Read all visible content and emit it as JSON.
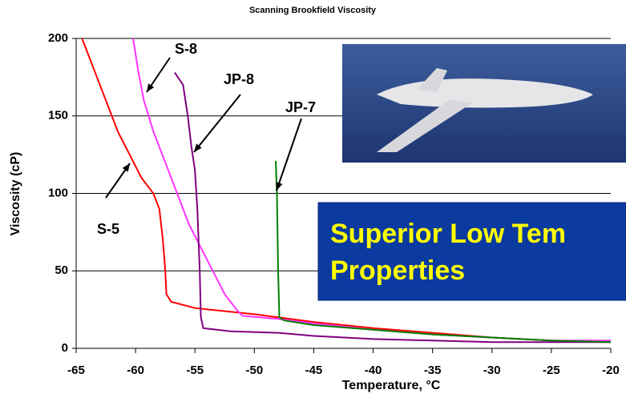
{
  "chart_data": {
    "type": "line",
    "title": "Scanning Brookfield Viscosity",
    "x_label": "Temperature, °C",
    "y_label": "Viscosity (cP)",
    "xlim": [
      -65,
      -20
    ],
    "ylim": [
      0,
      200
    ],
    "xticks": [
      -65,
      -60,
      -55,
      -50,
      -45,
      -40,
      -35,
      -30,
      -25,
      -20
    ],
    "yticks": [
      0,
      50,
      100,
      150,
      200
    ],
    "grid": true,
    "series": [
      {
        "name": "S-5",
        "color": "#ff0000",
        "x": [
          -64.5,
          -63.5,
          -62.5,
          -61.5,
          -60.5,
          -59.5,
          -58.5,
          -58,
          -57.7,
          -57.5,
          -57.4,
          -57,
          -55,
          -50,
          -45,
          -40,
          -35,
          -30,
          -25,
          -20
        ],
        "values": [
          200,
          180,
          160,
          140,
          125,
          110,
          100,
          90,
          70,
          50,
          35,
          30,
          26,
          22,
          17,
          13,
          10,
          7,
          5,
          4
        ]
      },
      {
        "name": "S-8",
        "color": "#ff33ff",
        "x": [
          -60.2,
          -59.8,
          -59.3,
          -58.5,
          -57.5,
          -56.5,
          -55.5,
          -54.5,
          -53.5,
          -52.5,
          -51.5,
          -51,
          -48,
          -45,
          -40,
          -35,
          -30,
          -25,
          -20
        ],
        "values": [
          200,
          180,
          160,
          140,
          120,
          100,
          80,
          65,
          50,
          35,
          25,
          21,
          19,
          16,
          12,
          9,
          7,
          5,
          5
        ]
      },
      {
        "name": "JP-8",
        "color": "#800080",
        "x": [
          -56.7,
          -56,
          -55.6,
          -55.3,
          -55,
          -54.8,
          -54.6,
          -54.5,
          -54.3,
          -52,
          -48,
          -45,
          -40,
          -35,
          -30,
          -25,
          -20
        ],
        "values": [
          178,
          170,
          150,
          130,
          115,
          90,
          50,
          20,
          13,
          11,
          10,
          8,
          6,
          5,
          4,
          4,
          4
        ]
      },
      {
        "name": "JP-7",
        "color": "#008000",
        "x": [
          -48.2,
          -48.1,
          -48,
          -47.9,
          -47.5,
          -45,
          -40,
          -35,
          -30,
          -25,
          -20
        ],
        "values": [
          121,
          100,
          50,
          20,
          18,
          15,
          12,
          9,
          7,
          5,
          4
        ]
      }
    ],
    "callout": [
      "Superior Low Tem",
      "Properties"
    ]
  }
}
